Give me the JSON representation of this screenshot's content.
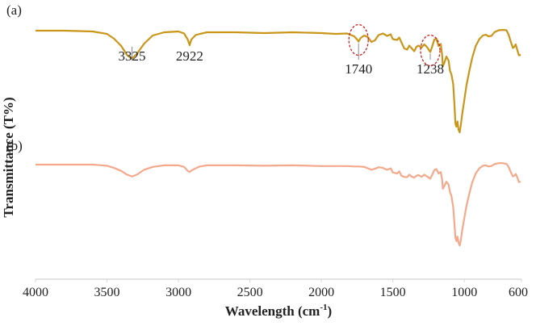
{
  "chart_data": {
    "type": "line",
    "xlabel": "Wavelength (cm",
    "xlabel_sup": "-1",
    "xlabel_close": ")",
    "ylabel": "Transmittance (T%)",
    "xlim": [
      4000,
      600
    ],
    "x_reversed": true,
    "xticks": [
      4000,
      3500,
      3000,
      2500,
      2000,
      1500,
      1000,
      600
    ],
    "grid": false,
    "y_tick_labels": false,
    "series": [
      {
        "panel_label": "(a)",
        "color": "#c9961a",
        "points": [
          [
            4000,
            100
          ],
          [
            3800,
            100
          ],
          [
            3600,
            99.8
          ],
          [
            3500,
            99.2
          ],
          [
            3450,
            98.0
          ],
          [
            3400,
            96.2
          ],
          [
            3360,
            94.0
          ],
          [
            3325,
            93.0
          ],
          [
            3290,
            94.3
          ],
          [
            3240,
            96.8
          ],
          [
            3180,
            98.8
          ],
          [
            3100,
            99.6
          ],
          [
            3000,
            99.8
          ],
          [
            2960,
            99.3
          ],
          [
            2935,
            97.8
          ],
          [
            2922,
            96.4
          ],
          [
            2910,
            97.8
          ],
          [
            2880,
            98.9
          ],
          [
            2850,
            99.2
          ],
          [
            2800,
            99.6
          ],
          [
            2600,
            99.6
          ],
          [
            2400,
            99.4
          ],
          [
            2200,
            99.6
          ],
          [
            2000,
            99.4
          ],
          [
            1900,
            99.2
          ],
          [
            1820,
            99.3
          ],
          [
            1770,
            98.6
          ],
          [
            1745,
            97.6
          ],
          [
            1740,
            97.3
          ],
          [
            1725,
            98.2
          ],
          [
            1700,
            98.8
          ],
          [
            1675,
            98.4
          ],
          [
            1650,
            97.2
          ],
          [
            1625,
            97.6
          ],
          [
            1600,
            98.9
          ],
          [
            1570,
            99.3
          ],
          [
            1540,
            98.7
          ],
          [
            1515,
            99.1
          ],
          [
            1500,
            97.9
          ],
          [
            1470,
            97.7
          ],
          [
            1455,
            98.3
          ],
          [
            1440,
            97.1
          ],
          [
            1420,
            95.6
          ],
          [
            1400,
            95.3
          ],
          [
            1385,
            96.3
          ],
          [
            1370,
            95.7
          ],
          [
            1350,
            94.9
          ],
          [
            1335,
            96.0
          ],
          [
            1320,
            96.3
          ],
          [
            1300,
            95.8
          ],
          [
            1280,
            96.6
          ],
          [
            1260,
            95.9
          ],
          [
            1238,
            94.7
          ],
          [
            1225,
            96.0
          ],
          [
            1210,
            97.8
          ],
          [
            1195,
            98.0
          ],
          [
            1180,
            96.2
          ],
          [
            1165,
            96.7
          ],
          [
            1155,
            94.0
          ],
          [
            1150,
            91.2
          ],
          [
            1140,
            92.0
          ],
          [
            1125,
            93.6
          ],
          [
            1110,
            92.6
          ],
          [
            1100,
            90.0
          ],
          [
            1090,
            89.2
          ],
          [
            1078,
            86.8
          ],
          [
            1070,
            82.3
          ],
          [
            1062,
            77.0
          ],
          [
            1055,
            76.2
          ],
          [
            1048,
            77.5
          ],
          [
            1040,
            75.4
          ],
          [
            1032,
            74.8
          ],
          [
            1025,
            76.5
          ],
          [
            1015,
            79.2
          ],
          [
            1000,
            82.8
          ],
          [
            985,
            86.4
          ],
          [
            965,
            90.0
          ],
          [
            945,
            93.2
          ],
          [
            920,
            96.2
          ],
          [
            895,
            97.9
          ],
          [
            870,
            98.8
          ],
          [
            850,
            99.0
          ],
          [
            830,
            98.6
          ],
          [
            810,
            98.7
          ],
          [
            790,
            99.6
          ],
          [
            760,
            100.1
          ],
          [
            730,
            100.2
          ],
          [
            705,
            100.1
          ],
          [
            690,
            99.0
          ],
          [
            675,
            97.3
          ],
          [
            660,
            95.7
          ],
          [
            650,
            96.0
          ],
          [
            640,
            96.6
          ],
          [
            630,
            95.3
          ],
          [
            618,
            93.9
          ],
          [
            605,
            94.0
          ]
        ],
        "annotations": [
          {
            "x": 3325,
            "label": "3325",
            "circled": false
          },
          {
            "x": 2922,
            "label": "2922",
            "circled": false
          },
          {
            "x": 1740,
            "label": "1740",
            "circled": true
          },
          {
            "x": 1238,
            "label": "1238",
            "circled": true
          }
        ]
      },
      {
        "panel_label": "(b)",
        "color": "#f4a98c",
        "points": [
          [
            4000,
            100
          ],
          [
            3800,
            100
          ],
          [
            3600,
            100
          ],
          [
            3500,
            99.7
          ],
          [
            3450,
            99.1
          ],
          [
            3400,
            98.3
          ],
          [
            3360,
            97.3
          ],
          [
            3325,
            96.8
          ],
          [
            3290,
            97.3
          ],
          [
            3240,
            98.6
          ],
          [
            3180,
            99.4
          ],
          [
            3100,
            99.8
          ],
          [
            3000,
            99.8
          ],
          [
            2960,
            99.4
          ],
          [
            2935,
            98.3
          ],
          [
            2922,
            98.0
          ],
          [
            2910,
            98.4
          ],
          [
            2880,
            99.0
          ],
          [
            2850,
            99.5
          ],
          [
            2800,
            99.8
          ],
          [
            2600,
            99.8
          ],
          [
            2400,
            99.7
          ],
          [
            2200,
            99.8
          ],
          [
            2000,
            99.6
          ],
          [
            1900,
            99.6
          ],
          [
            1820,
            99.6
          ],
          [
            1770,
            99.5
          ],
          [
            1740,
            99.5
          ],
          [
            1700,
            99.4
          ],
          [
            1650,
            98.6
          ],
          [
            1625,
            98.9
          ],
          [
            1600,
            99.3
          ],
          [
            1570,
            99.1
          ],
          [
            1540,
            98.6
          ],
          [
            1515,
            99.0
          ],
          [
            1500,
            97.9
          ],
          [
            1470,
            97.6
          ],
          [
            1455,
            98.2
          ],
          [
            1440,
            97.0
          ],
          [
            1420,
            96.7
          ],
          [
            1400,
            96.6
          ],
          [
            1385,
            97.3
          ],
          [
            1370,
            96.8
          ],
          [
            1350,
            96.5
          ],
          [
            1335,
            97.0
          ],
          [
            1320,
            97.2
          ],
          [
            1300,
            96.7
          ],
          [
            1280,
            97.3
          ],
          [
            1260,
            96.8
          ],
          [
            1238,
            96.2
          ],
          [
            1225,
            97.2
          ],
          [
            1210,
            98.5
          ],
          [
            1195,
            98.8
          ],
          [
            1180,
            97.6
          ],
          [
            1165,
            98.0
          ],
          [
            1155,
            96.0
          ],
          [
            1150,
            93.5
          ],
          [
            1140,
            94.2
          ],
          [
            1125,
            95.4
          ],
          [
            1110,
            94.6
          ],
          [
            1100,
            92.5
          ],
          [
            1090,
            91.6
          ],
          [
            1078,
            88.6
          ],
          [
            1070,
            84.6
          ],
          [
            1062,
            80.3
          ],
          [
            1055,
            79.4
          ],
          [
            1048,
            80.6
          ],
          [
            1040,
            78.9
          ],
          [
            1032,
            78.2
          ],
          [
            1025,
            79.6
          ],
          [
            1015,
            82.2
          ],
          [
            1000,
            85.6
          ],
          [
            985,
            88.8
          ],
          [
            965,
            92.2
          ],
          [
            945,
            95.1
          ],
          [
            920,
            97.6
          ],
          [
            895,
            99.0
          ],
          [
            870,
            99.7
          ],
          [
            850,
            99.8
          ],
          [
            830,
            99.5
          ],
          [
            810,
            99.6
          ],
          [
            790,
            100.1
          ],
          [
            760,
            100.4
          ],
          [
            730,
            100.4
          ],
          [
            705,
            100.2
          ],
          [
            690,
            99.4
          ],
          [
            675,
            98.0
          ],
          [
            660,
            96.8
          ],
          [
            650,
            97.0
          ],
          [
            640,
            97.5
          ],
          [
            630,
            96.6
          ],
          [
            618,
            95.3
          ],
          [
            605,
            95.4
          ]
        ],
        "annotations": []
      }
    ]
  }
}
